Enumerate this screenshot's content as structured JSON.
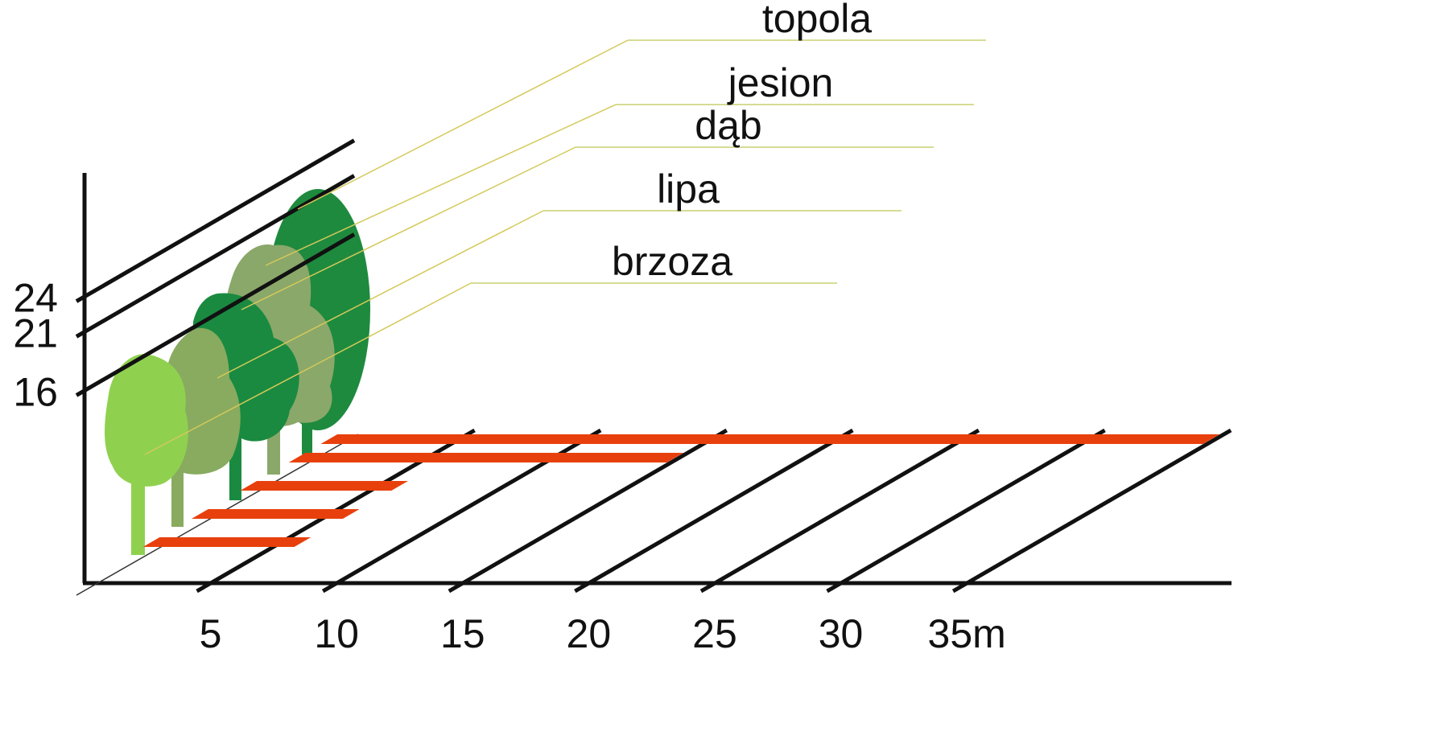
{
  "chart_data": {
    "type": "bar",
    "categories": [
      "brzoza",
      "lipa",
      "dąb",
      "jesion",
      "topola"
    ],
    "values": [
      6,
      6,
      6,
      15,
      35
    ],
    "color": "#e8400c",
    "xlim": [
      0,
      45.5
    ],
    "xticks": [
      5,
      10,
      15,
      20,
      25,
      30,
      {
        "value": 35,
        "label": "35m"
      }
    ],
    "ylim": [
      0,
      35
    ],
    "yticks": [
      16,
      21,
      24
    ]
  }
}
